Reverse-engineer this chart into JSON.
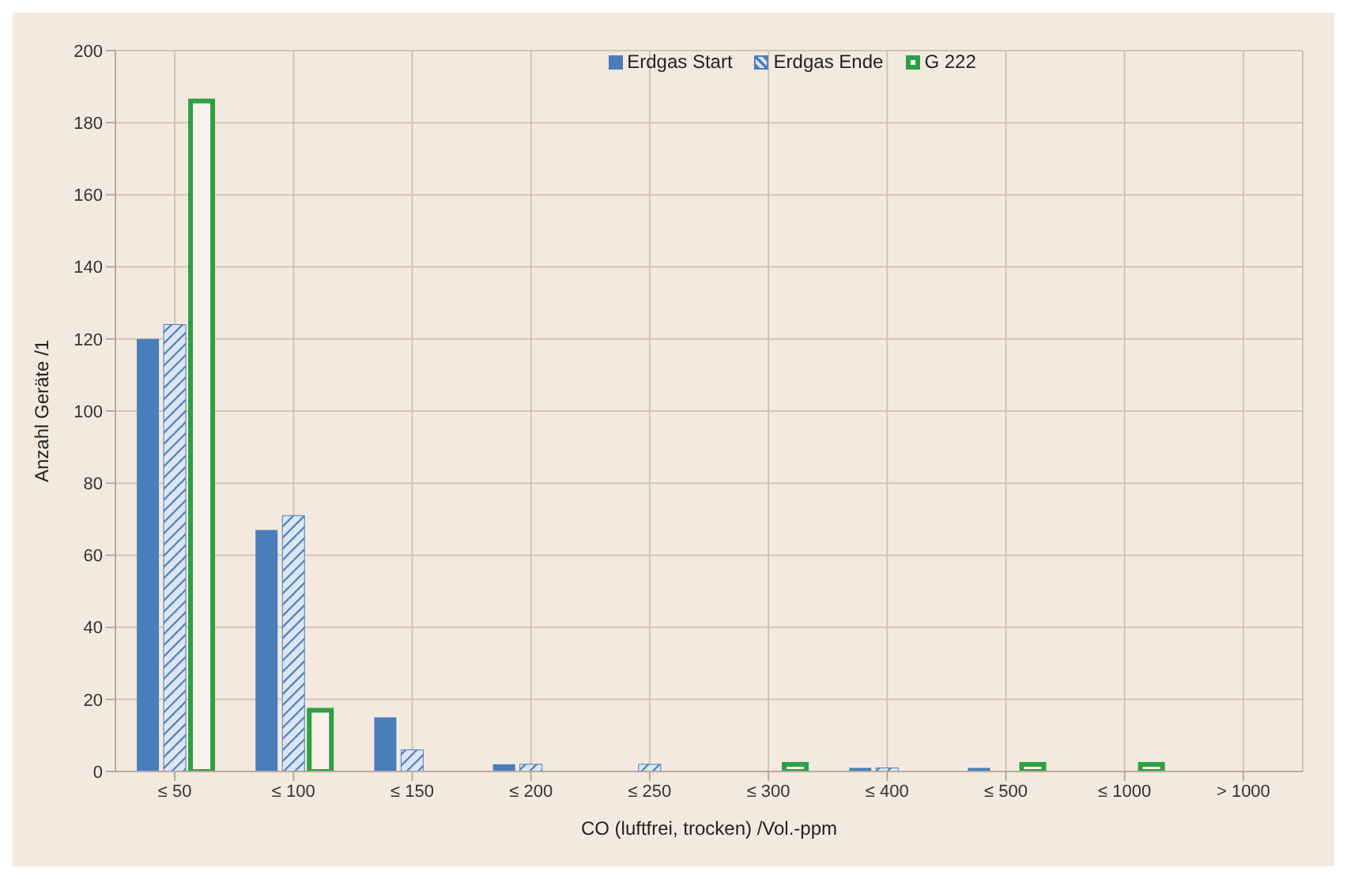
{
  "chart_data": {
    "type": "bar",
    "xlabel": "CO (luftfrei, trocken) /Vol.-ppm",
    "ylabel": "Anzahl Geräte /1",
    "categories": [
      "≤ 50",
      "≤ 100",
      "≤ 150",
      "≤ 200",
      "≤ 250",
      "≤ 300",
      "≤ 400",
      "≤ 500",
      "≤ 1000",
      "> 1000"
    ],
    "series": [
      {
        "name": "Erdgas Start",
        "color": "#4a7ebb",
        "values": [
          120,
          67,
          15,
          2,
          0,
          0,
          1,
          1,
          0,
          0
        ]
      },
      {
        "name": "Erdgas Ende",
        "color": "#4a7ebb",
        "values": [
          124,
          71,
          6,
          2,
          2,
          0,
          1,
          0,
          0,
          0
        ]
      },
      {
        "name": "G 222",
        "color": "#2ea043",
        "values": [
          186,
          17,
          0,
          0,
          0,
          2,
          0,
          2,
          2,
          0
        ]
      }
    ],
    "ylim": [
      0,
      200
    ],
    "yticks": [
      0,
      20,
      40,
      60,
      80,
      100,
      120,
      140,
      160,
      180,
      200
    ],
    "grid": true,
    "legend": "top"
  }
}
